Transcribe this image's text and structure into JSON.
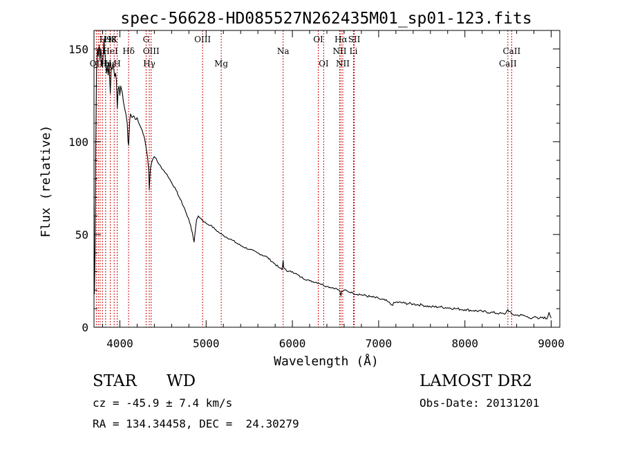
{
  "chart_data": {
    "type": "line",
    "title": "spec-56628-HD085527N262435M01_sp01-123.fits",
    "xlabel": "Wavelength (Å)",
    "ylabel": "Flux (relative)",
    "xlim": [
      3700,
      9100
    ],
    "ylim": [
      0,
      160
    ],
    "xticks": [
      4000,
      5000,
      6000,
      7000,
      8000,
      9000
    ],
    "yticks": [
      0,
      50,
      100,
      150
    ],
    "grid": false,
    "series": [
      {
        "color": "#000000",
        "points": [
          [
            3700,
            65
          ],
          [
            3705,
            18
          ],
          [
            3712,
            40
          ],
          [
            3720,
            95
          ],
          [
            3730,
            138
          ],
          [
            3740,
            150
          ],
          [
            3750,
            146
          ],
          [
            3760,
            152
          ],
          [
            3770,
            144
          ],
          [
            3780,
            150
          ],
          [
            3790,
            145
          ],
          [
            3800,
            140
          ],
          [
            3810,
            150
          ],
          [
            3815,
            155
          ],
          [
            3825,
            149
          ],
          [
            3835,
            142
          ],
          [
            3845,
            137
          ],
          [
            3855,
            141
          ],
          [
            3865,
            136
          ],
          [
            3875,
            142
          ],
          [
            3889,
            126
          ],
          [
            3900,
            140
          ],
          [
            3910,
            139
          ],
          [
            3920,
            142
          ],
          [
            3930,
            139
          ],
          [
            3940,
            135
          ],
          [
            3950,
            137
          ],
          [
            3960,
            133
          ],
          [
            3970,
            118
          ],
          [
            3980,
            128
          ],
          [
            3990,
            130
          ],
          [
            4000,
            125
          ],
          [
            4010,
            130
          ],
          [
            4020,
            128
          ],
          [
            4030,
            126
          ],
          [
            4040,
            122
          ],
          [
            4055,
            118
          ],
          [
            4070,
            115
          ],
          [
            4085,
            110
          ],
          [
            4095,
            100
          ],
          [
            4101,
            98
          ],
          [
            4107,
            104
          ],
          [
            4115,
            112
          ],
          [
            4125,
            115
          ],
          [
            4140,
            113
          ],
          [
            4160,
            114
          ],
          [
            4180,
            112
          ],
          [
            4200,
            113
          ],
          [
            4220,
            110
          ],
          [
            4240,
            108
          ],
          [
            4260,
            106
          ],
          [
            4280,
            103
          ],
          [
            4300,
            98
          ],
          [
            4320,
            92
          ],
          [
            4335,
            84
          ],
          [
            4341,
            74
          ],
          [
            4347,
            80
          ],
          [
            4355,
            86
          ],
          [
            4370,
            89
          ],
          [
            4385,
            91
          ],
          [
            4400,
            92
          ],
          [
            4420,
            91
          ],
          [
            4450,
            88
          ],
          [
            4500,
            85
          ],
          [
            4550,
            82
          ],
          [
            4600,
            78
          ],
          [
            4650,
            74
          ],
          [
            4700,
            69
          ],
          [
            4750,
            64
          ],
          [
            4780,
            60
          ],
          [
            4800,
            58
          ],
          [
            4820,
            55
          ],
          [
            4840,
            51
          ],
          [
            4855,
            47
          ],
          [
            4861,
            46
          ],
          [
            4870,
            50
          ],
          [
            4890,
            58
          ],
          [
            4910,
            60
          ],
          [
            4930,
            59
          ],
          [
            4950,
            58
          ],
          [
            5000,
            56
          ],
          [
            5050,
            55
          ],
          [
            5100,
            53
          ],
          [
            5150,
            51
          ],
          [
            5200,
            49.5
          ],
          [
            5300,
            47
          ],
          [
            5400,
            44
          ],
          [
            5500,
            42
          ],
          [
            5600,
            40
          ],
          [
            5700,
            38
          ],
          [
            5800,
            34
          ],
          [
            5850,
            32
          ],
          [
            5880,
            31
          ],
          [
            5893,
            36
          ],
          [
            5900,
            32
          ],
          [
            5950,
            30
          ],
          [
            6000,
            30
          ],
          [
            6100,
            27
          ],
          [
            6200,
            25
          ],
          [
            6300,
            24
          ],
          [
            6400,
            22
          ],
          [
            6500,
            21
          ],
          [
            6550,
            19.5
          ],
          [
            6563,
            17
          ],
          [
            6575,
            19.5
          ],
          [
            6600,
            20
          ],
          [
            6700,
            18.5
          ],
          [
            6800,
            17.5
          ],
          [
            6900,
            16.5
          ],
          [
            7000,
            15.5
          ],
          [
            7100,
            14
          ],
          [
            7150,
            12
          ],
          [
            7200,
            13.5
          ],
          [
            7300,
            13
          ],
          [
            7400,
            12.5
          ],
          [
            7500,
            12
          ],
          [
            7600,
            11
          ],
          [
            7700,
            11
          ],
          [
            7800,
            10.5
          ],
          [
            7900,
            10
          ],
          [
            8000,
            9.5
          ],
          [
            8100,
            9
          ],
          [
            8200,
            8.5
          ],
          [
            8300,
            8
          ],
          [
            8400,
            7.5
          ],
          [
            8460,
            7
          ],
          [
            8498,
            9.5
          ],
          [
            8542,
            7
          ],
          [
            8600,
            6.5
          ],
          [
            8662,
            6.5
          ],
          [
            8700,
            6
          ],
          [
            8750,
            5
          ],
          [
            8800,
            5.5
          ],
          [
            8850,
            4.5
          ],
          [
            8900,
            5.5
          ],
          [
            8950,
            4.5
          ],
          [
            8975,
            8
          ],
          [
            9000,
            5
          ]
        ]
      }
    ],
    "line_labels": [
      {
        "text": "OII",
        "wavelength": 3727,
        "row": 2
      },
      {
        "text": "H9",
        "wavelength": 3835,
        "row": 0
      },
      {
        "text": "Hη",
        "wavelength": 3835,
        "row": 2
      },
      {
        "text": "H8",
        "wavelength": 3889,
        "row": 0
      },
      {
        "text": "HeI",
        "wavelength": 3889,
        "row": 1
      },
      {
        "text": "Hε",
        "wavelength": 3889,
        "row": 2
      },
      {
        "text": "K",
        "wavelength": 3934,
        "row": 0
      },
      {
        "text": "H",
        "wavelength": 3969,
        "row": 2
      },
      {
        "text": "Hδ",
        "wavelength": 4101,
        "row": 1
      },
      {
        "text": "G",
        "wavelength": 4304,
        "row": 0
      },
      {
        "text": "OIII",
        "wavelength": 4363,
        "row": 1
      },
      {
        "text": "Hγ",
        "wavelength": 4341,
        "row": 2
      },
      {
        "text": "OIII",
        "wavelength": 4959,
        "row": 0
      },
      {
        "text": "Mg",
        "wavelength": 5175,
        "row": 2
      },
      {
        "text": "Na",
        "wavelength": 5893,
        "row": 1
      },
      {
        "text": "OI",
        "wavelength": 6300,
        "row": 0
      },
      {
        "text": "OI",
        "wavelength": 6363,
        "row": 2
      },
      {
        "text": "Hα",
        "wavelength": 6563,
        "row": 0
      },
      {
        "text": "NII",
        "wavelength": 6548,
        "row": 1
      },
      {
        "text": "NII",
        "wavelength": 6584,
        "row": 2
      },
      {
        "text": "SII",
        "wavelength": 6717,
        "row": 0
      },
      {
        "text": "Li",
        "wavelength": 6708,
        "row": 1
      },
      {
        "text": "CaII",
        "wavelength": 8542,
        "row": 1
      },
      {
        "text": "CaII",
        "wavelength": 8498,
        "row": 2
      }
    ],
    "line_markers": [
      3727,
      3750,
      3771,
      3798,
      3835,
      3889,
      3934,
      3969,
      4101,
      4304,
      4341,
      4363,
      4959,
      5175,
      5893,
      6300,
      6363,
      6548,
      6563,
      6584,
      6708,
      6717,
      8498,
      8542
    ],
    "marker_color": "#cc0000"
  },
  "info": {
    "class_label": "STAR",
    "subclass": "WD",
    "survey": "LAMOST DR2",
    "cz": "cz = -45.9 ± 7.4 km/s",
    "obs_date": "Obs-Date: 20131201",
    "radec": "RA = 134.34458, DEC =  24.30279"
  }
}
